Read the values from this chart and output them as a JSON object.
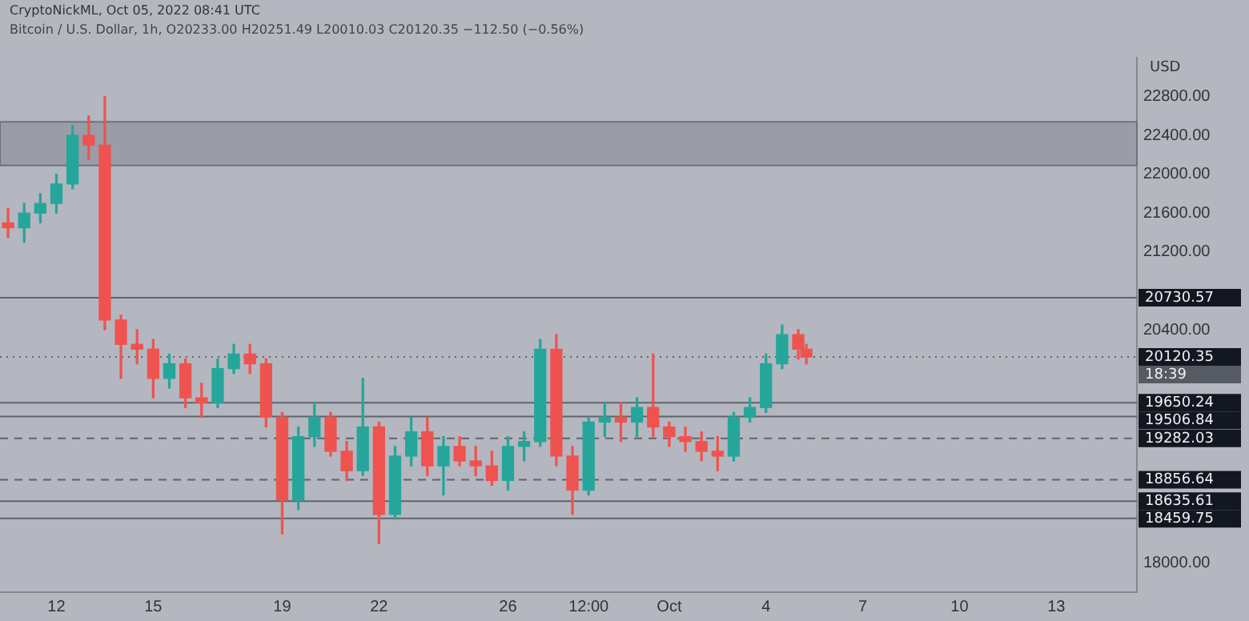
{
  "chart_data": {
    "type": "candlestick",
    "title": "CryptoNickML, Oct 05, 2022 08:41 UTC",
    "subtitle": "Bitcoin / U.S. Dollar, 1h, O20233.00 H20251.49 L20010.03 C20120.35 −112.50 (−0.56%)",
    "ylabel": "USD",
    "x": [
      "2022-09-10T12:00",
      "2022-09-11T00:00",
      "2022-09-11T12:00",
      "2022-09-12T00:00",
      "2022-09-12T12:00",
      "2022-09-13T00:00",
      "2022-09-13T12:00",
      "2022-09-14T00:00",
      "2022-09-14T12:00",
      "2022-09-15T00:00",
      "2022-09-15T12:00",
      "2022-09-16T00:00",
      "2022-09-16T12:00",
      "2022-09-17T00:00",
      "2022-09-17T12:00",
      "2022-09-18T00:00",
      "2022-09-18T12:00",
      "2022-09-19T00:00",
      "2022-09-19T12:00",
      "2022-09-20T00:00",
      "2022-09-20T12:00",
      "2022-09-21T00:00",
      "2022-09-21T12:00",
      "2022-09-22T00:00",
      "2022-09-22T12:00",
      "2022-09-23T00:00",
      "2022-09-23T12:00",
      "2022-09-24T00:00",
      "2022-09-24T12:00",
      "2022-09-25T00:00",
      "2022-09-25T12:00",
      "2022-09-26T00:00",
      "2022-09-26T12:00",
      "2022-09-27T00:00",
      "2022-09-27T12:00",
      "2022-09-28T00:00",
      "2022-09-28T12:00",
      "2022-09-29T00:00",
      "2022-09-29T12:00",
      "2022-09-30T00:00",
      "2022-09-30T12:00",
      "2022-10-01T00:00",
      "2022-10-01T12:00",
      "2022-10-02T00:00",
      "2022-10-02T12:00",
      "2022-10-03T00:00",
      "2022-10-03T12:00",
      "2022-10-04T00:00",
      "2022-10-04T12:00",
      "2022-10-05T00:00",
      "2022-10-05T06:00"
    ],
    "ohlc": [
      [
        21500,
        21650,
        21350,
        21450
      ],
      [
        21450,
        21700,
        21300,
        21600
      ],
      [
        21600,
        21800,
        21500,
        21700
      ],
      [
        21700,
        22000,
        21600,
        21900
      ],
      [
        21900,
        22500,
        21850,
        22400
      ],
      [
        22400,
        22600,
        22150,
        22300
      ],
      [
        22300,
        22800,
        20400,
        20500
      ],
      [
        20500,
        20550,
        19900,
        20250
      ],
      [
        20250,
        20400,
        20050,
        20200
      ],
      [
        20200,
        20300,
        19700,
        19900
      ],
      [
        19900,
        20150,
        19800,
        20050
      ],
      [
        20050,
        20100,
        19600,
        19700
      ],
      [
        19700,
        19850,
        19500,
        19650
      ],
      [
        19650,
        20100,
        19600,
        20000
      ],
      [
        20000,
        20250,
        19950,
        20150
      ],
      [
        20150,
        20250,
        19950,
        20050
      ],
      [
        20050,
        20100,
        19400,
        19500
      ],
      [
        19500,
        19550,
        18300,
        18650
      ],
      [
        18650,
        19400,
        18550,
        19300
      ],
      [
        19300,
        19650,
        19200,
        19500
      ],
      [
        19500,
        19550,
        19100,
        19150
      ],
      [
        19150,
        19250,
        18850,
        18950
      ],
      [
        18950,
        19900,
        18900,
        19400
      ],
      [
        19400,
        19450,
        18200,
        18500
      ],
      [
        18500,
        19200,
        18450,
        19100
      ],
      [
        19100,
        19500,
        19000,
        19350
      ],
      [
        19350,
        19500,
        18900,
        19000
      ],
      [
        19000,
        19300,
        18700,
        19200
      ],
      [
        19200,
        19300,
        19000,
        19050
      ],
      [
        19050,
        19200,
        18900,
        19000
      ],
      [
        19000,
        19150,
        18800,
        18850
      ],
      [
        18850,
        19300,
        18750,
        19200
      ],
      [
        19200,
        19350,
        19050,
        19250
      ],
      [
        19250,
        20300,
        19200,
        20200
      ],
      [
        20200,
        20350,
        19000,
        19100
      ],
      [
        19100,
        19200,
        18500,
        18750
      ],
      [
        18750,
        19500,
        18700,
        19450
      ],
      [
        19450,
        19650,
        19300,
        19500
      ],
      [
        19500,
        19650,
        19250,
        19450
      ],
      [
        19450,
        19700,
        19300,
        19600
      ],
      [
        19600,
        20150,
        19300,
        19400
      ],
      [
        19400,
        19450,
        19200,
        19300
      ],
      [
        19300,
        19400,
        19150,
        19250
      ],
      [
        19250,
        19350,
        19050,
        19150
      ],
      [
        19150,
        19300,
        18950,
        19100
      ],
      [
        19100,
        19550,
        19050,
        19500
      ],
      [
        19500,
        19700,
        19450,
        19600
      ],
      [
        19600,
        20150,
        19550,
        20050
      ],
      [
        20050,
        20450,
        20000,
        20350
      ],
      [
        20350,
        20400,
        20100,
        20200
      ],
      [
        20200,
        20250,
        20050,
        20120.35
      ]
    ],
    "colors": [
      "#ef5350",
      "#26a69a",
      "#26a69a",
      "#26a69a",
      "#26a69a",
      "#ef5350",
      "#ef5350",
      "#ef5350",
      "#ef5350",
      "#ef5350",
      "#26a69a",
      "#ef5350",
      "#ef5350",
      "#26a69a",
      "#26a69a",
      "#ef5350",
      "#ef5350",
      "#ef5350",
      "#26a69a",
      "#26a69a",
      "#ef5350",
      "#ef5350",
      "#26a69a",
      "#ef5350",
      "#26a69a",
      "#26a69a",
      "#ef5350",
      "#26a69a",
      "#ef5350",
      "#ef5350",
      "#ef5350",
      "#26a69a",
      "#26a69a",
      "#26a69a",
      "#ef5350",
      "#ef5350",
      "#26a69a",
      "#26a69a",
      "#ef5350",
      "#26a69a",
      "#ef5350",
      "#ef5350",
      "#ef5350",
      "#ef5350",
      "#ef5350",
      "#26a69a",
      "#26a69a",
      "#26a69a",
      "#26a69a",
      "#ef5350",
      "#ef5350"
    ],
    "xlim": [
      "2022-09-10T06:00",
      "2022-10-15T12:00"
    ],
    "xticks": [
      {
        "value": "2022-09-12",
        "label": "12"
      },
      {
        "value": "2022-09-15",
        "label": "15"
      },
      {
        "value": "2022-09-19",
        "label": "19"
      },
      {
        "value": "2022-09-22",
        "label": "22"
      },
      {
        "value": "2022-09-26",
        "label": "26"
      },
      {
        "value": "2022-09-28T12:00",
        "label": "12:00"
      },
      {
        "value": "2022-10-01",
        "label": "Oct"
      },
      {
        "value": "2022-10-04",
        "label": "4"
      },
      {
        "value": "2022-10-07",
        "label": "7"
      },
      {
        "value": "2022-10-10",
        "label": "10"
      },
      {
        "value": "2022-10-13",
        "label": "13"
      }
    ],
    "ylim": [
      17700,
      23200
    ],
    "yticks": [
      {
        "value": 18000,
        "label": "18000.00"
      },
      {
        "value": 20400,
        "label": "20400.00"
      },
      {
        "value": 21200,
        "label": "21200.00"
      },
      {
        "value": 21600,
        "label": "21600.00"
      },
      {
        "value": 22000,
        "label": "22000.00"
      },
      {
        "value": 22400,
        "label": "22400.00"
      },
      {
        "value": 22800,
        "label": "22800.00"
      }
    ],
    "ref_lines": [
      {
        "axis": "y",
        "value": 20730.57,
        "label": "20730.57",
        "line_style": "solid"
      },
      {
        "axis": "y",
        "value": 20120.35,
        "label": "20120.35",
        "line_style": "dotted"
      },
      {
        "axis": "y",
        "value": 19650.24,
        "label": "19650.24",
        "line_style": "solid"
      },
      {
        "axis": "y",
        "value": 19506.84,
        "label": "19506.84",
        "line_style": "solid"
      },
      {
        "axis": "y",
        "value": 19282.03,
        "label": "19282.03",
        "line_style": "dashed"
      },
      {
        "axis": "y",
        "value": 18856.64,
        "label": "18856.64",
        "line_style": "dashed"
      },
      {
        "axis": "y",
        "value": 18635.61,
        "label": "18635.61",
        "line_style": "solid"
      },
      {
        "axis": "y",
        "value": 18459.75,
        "label": "18459.75",
        "line_style": "solid"
      }
    ],
    "bands": [
      {
        "axis": "y",
        "from": 22090,
        "to": 22540,
        "color": "#8e929c"
      }
    ],
    "annotations": [
      "18:39"
    ],
    "grid": false
  }
}
